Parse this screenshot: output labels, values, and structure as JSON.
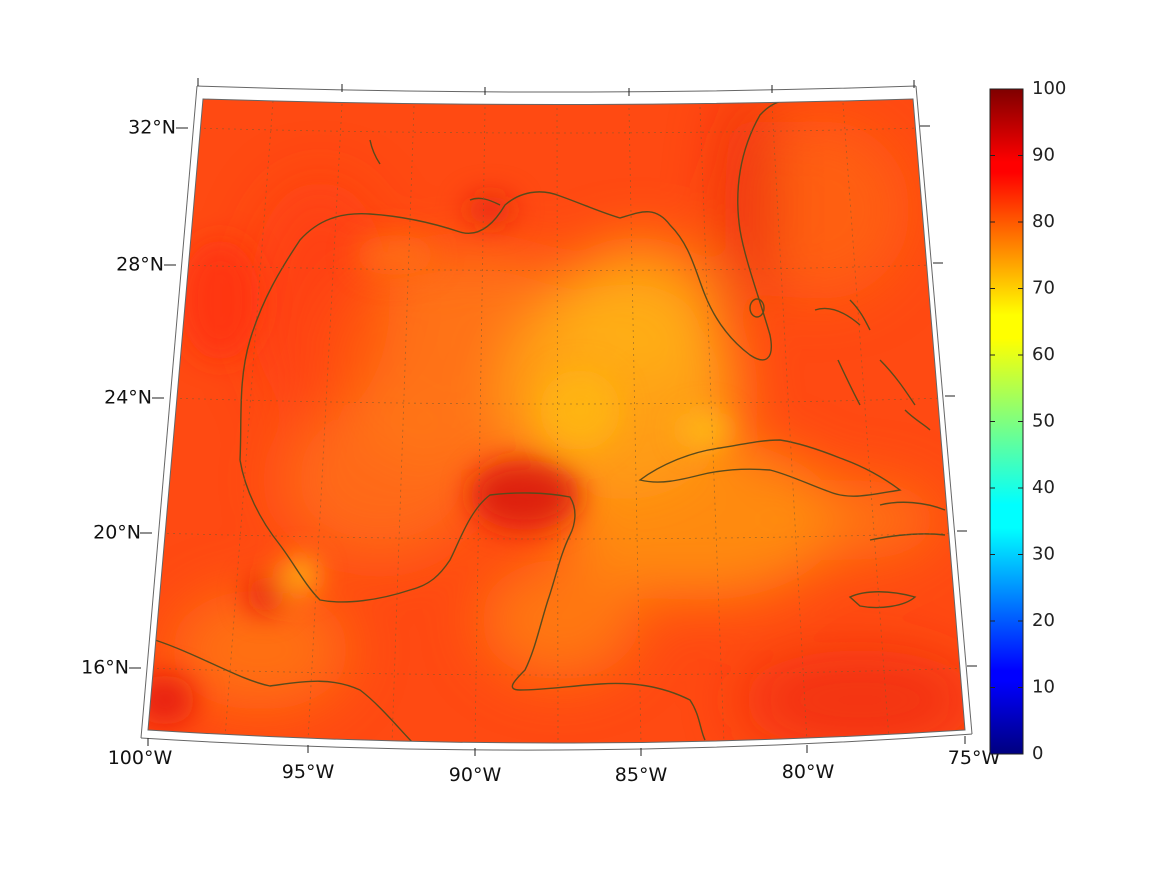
{
  "map": {
    "projection": "conic",
    "variable_field_colormap": "jet",
    "lon_labels": [
      "100°W",
      "95°W",
      "90°W",
      "85°W",
      "80°W",
      "75°W"
    ],
    "lat_labels": [
      "32°N",
      "28°N",
      "24°N",
      "20°N",
      "16°N"
    ],
    "grid": "dotted",
    "coastline_color": "#5a4a1c",
    "frame_color": "#555555"
  },
  "colorbar": {
    "min": 0,
    "max": 100,
    "ticks": [
      "0",
      "10",
      "20",
      "30",
      "40",
      "50",
      "60",
      "70",
      "80",
      "90",
      "100"
    ],
    "colormap": "jet"
  },
  "colors": {
    "field_base": "#ff4a12",
    "field_warm_high": "#e81a0a",
    "field_mid": "#ff8a12",
    "field_low": "#ffbf14",
    "land_line": "#5a4a1c"
  }
}
